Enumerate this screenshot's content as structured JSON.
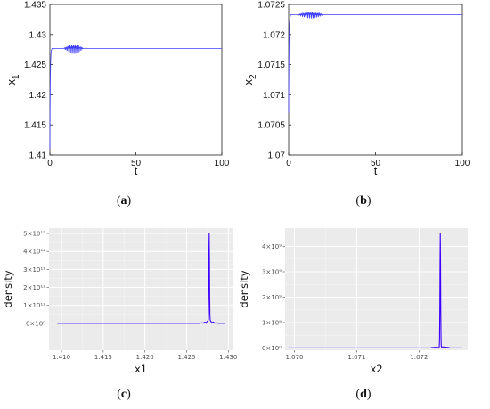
{
  "chart_data": [
    {
      "id": "a",
      "type": "line",
      "panel_label": "a",
      "xlabel": "t",
      "ylabel": "x",
      "ylabel_sub": "1",
      "xlim": [
        0,
        100
      ],
      "ylim": [
        1.41,
        1.435
      ],
      "xticks": [
        "0",
        "50",
        "100"
      ],
      "yticks": [
        "1.41",
        "1.415",
        "1.42",
        "1.425",
        "1.43",
        "1.435"
      ],
      "line_color": "#4040ff",
      "grid": false,
      "transient": {
        "start": 1.411,
        "plateau": 1.4277,
        "final": 1.4277,
        "osc_t": [
          8,
          21
        ],
        "osc_amp": 0.0012
      }
    },
    {
      "id": "b",
      "type": "line",
      "panel_label": "b",
      "xlabel": "t",
      "ylabel": "x",
      "ylabel_sub": "2",
      "xlim": [
        0,
        100
      ],
      "ylim": [
        1.07,
        1.0725
      ],
      "xticks": [
        "0",
        "50",
        "100"
      ],
      "yticks": [
        "1.07",
        "1.0705",
        "1.071",
        "1.0715",
        "1.072",
        "1.0725"
      ],
      "line_color": "#4040ff",
      "grid": false,
      "transient": {
        "start": 1.0707,
        "plateau": 1.07233,
        "final": 1.07233,
        "osc_t": [
          5,
          22
        ],
        "osc_amp": 8e-05
      }
    },
    {
      "id": "c",
      "type": "area",
      "panel_label": "c",
      "xlabel": "x1",
      "ylabel": "density",
      "xlim": [
        1.4085,
        1.4305
      ],
      "ylim": [
        -1500000000000.0,
        5300000000000.0
      ],
      "xticks": [
        1.41,
        1.415,
        1.42,
        1.425,
        1.43
      ],
      "xtick_labels": [
        "1.410",
        "1.415",
        "1.420",
        "1.425",
        "1.430"
      ],
      "yticks": [
        0,
        1000000000000.0,
        2000000000000.0,
        3000000000000.0,
        4000000000000.0,
        5000000000000.0
      ],
      "ytick_labels": [
        "0×10⁰",
        "1×10¹²",
        "2×10¹²",
        "3×10¹²",
        "4×10¹²",
        "5×10¹²"
      ],
      "peak": {
        "x": 1.4277,
        "value": 5000000000000.0
      },
      "baseline": {
        "x_start": 1.4095,
        "x_end": 1.4296
      },
      "line_color": "#3b00ff",
      "panel_bg": "#ebebeb",
      "grid": true
    },
    {
      "id": "d",
      "type": "area",
      "panel_label": "d",
      "xlabel": "x2",
      "ylabel": "density",
      "xlim": [
        1.06985,
        1.07278
      ],
      "ylim": [
        -90000000.0,
        4720000000.0
      ],
      "xticks": [
        1.07,
        1.071,
        1.072
      ],
      "xtick_labels": [
        "1.070",
        "1.071",
        "1.072"
      ],
      "yticks": [
        0,
        1000000000.0,
        2000000000.0,
        3000000000.0,
        4000000000.0
      ],
      "ytick_labels": [
        "0×10⁰",
        "1×10⁹",
        "2×10⁹",
        "3×10⁹",
        "4×10⁹"
      ],
      "peak": {
        "x": 1.07234,
        "value": 4500000000.0
      },
      "baseline": {
        "x_start": 1.0699,
        "x_end": 1.0727
      },
      "line_color": "#3b00ff",
      "panel_bg": "#ebebeb",
      "grid": true
    }
  ]
}
